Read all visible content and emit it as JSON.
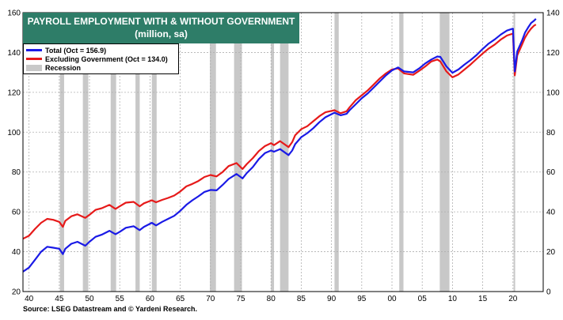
{
  "title": {
    "line1": "PAYROLL EMPLOYMENT WITH & WITHOUT GOVERNMENT",
    "line2": "(million, sa)"
  },
  "legend": {
    "total": "Total (Oct = 156.9)",
    "excluding": "Excluding Government (Oct = 134.0)",
    "recession": "Recession"
  },
  "source": "Source: LSEG Datastream and © Yardeni Research.",
  "colors": {
    "title_bg": "#2e7d68",
    "total": "#1a1ae6",
    "excluding": "#e61a1a",
    "recession": "#c8c8c8"
  },
  "chart_data": {
    "type": "line",
    "xlim": [
      1939,
      2025
    ],
    "x_tick_labels": [
      "40",
      "45",
      "50",
      "55",
      "60",
      "65",
      "70",
      "75",
      "80",
      "85",
      "90",
      "95",
      "00",
      "05",
      "10",
      "15",
      "20"
    ],
    "x_tick_years": [
      1940,
      1945,
      1950,
      1955,
      1960,
      1965,
      1970,
      1975,
      1980,
      1985,
      1990,
      1995,
      2000,
      2005,
      2010,
      2015,
      2020
    ],
    "left_axis": {
      "ylim": [
        20,
        160
      ],
      "ticks": [
        20,
        40,
        60,
        80,
        100,
        120,
        140,
        160
      ]
    },
    "right_axis": {
      "ylim": [
        0,
        140
      ],
      "ticks": [
        0,
        20,
        40,
        60,
        80,
        100,
        120,
        140
      ]
    },
    "grid": true,
    "legend_position": "top-left",
    "recessions": [
      [
        1945.1,
        1945.8
      ],
      [
        1948.9,
        1949.8
      ],
      [
        1953.5,
        1954.4
      ],
      [
        1957.6,
        1958.3
      ],
      [
        1960.3,
        1961.1
      ],
      [
        1969.9,
        1970.9
      ],
      [
        1973.9,
        1975.2
      ],
      [
        1980.0,
        1980.5
      ],
      [
        1981.5,
        1982.9
      ],
      [
        1990.5,
        1991.2
      ],
      [
        2001.2,
        2001.9
      ],
      [
        2007.9,
        2009.5
      ],
      [
        2020.1,
        2020.3
      ]
    ],
    "series": [
      {
        "name": "Total (Oct = 156.9)",
        "axis": "left",
        "points": [
          [
            1939.0,
            30.0
          ],
          [
            1940.0,
            32.0
          ],
          [
            1941.0,
            36.0
          ],
          [
            1942.0,
            40.0
          ],
          [
            1943.0,
            42.5
          ],
          [
            1944.0,
            42.0
          ],
          [
            1945.0,
            41.5
          ],
          [
            1945.6,
            38.8
          ],
          [
            1946.0,
            41.5
          ],
          [
            1947.0,
            44.0
          ],
          [
            1948.0,
            45.0
          ],
          [
            1949.3,
            43.0
          ],
          [
            1950.0,
            45.0
          ],
          [
            1951.0,
            47.5
          ],
          [
            1952.0,
            48.5
          ],
          [
            1953.3,
            50.5
          ],
          [
            1954.3,
            48.8
          ],
          [
            1955.0,
            50.0
          ],
          [
            1956.0,
            52.0
          ],
          [
            1957.3,
            52.8
          ],
          [
            1958.3,
            50.8
          ],
          [
            1959.0,
            52.5
          ],
          [
            1960.3,
            54.5
          ],
          [
            1961.0,
            53.2
          ],
          [
            1962.0,
            55.0
          ],
          [
            1963.0,
            56.5
          ],
          [
            1964.0,
            58.0
          ],
          [
            1965.0,
            60.5
          ],
          [
            1966.0,
            63.5
          ],
          [
            1967.0,
            65.8
          ],
          [
            1968.0,
            67.8
          ],
          [
            1969.0,
            70.0
          ],
          [
            1970.0,
            71.0
          ],
          [
            1971.0,
            70.8
          ],
          [
            1972.0,
            73.5
          ],
          [
            1973.0,
            76.5
          ],
          [
            1974.3,
            79.0
          ],
          [
            1975.3,
            76.8
          ],
          [
            1976.0,
            79.5
          ],
          [
            1977.0,
            82.5
          ],
          [
            1978.0,
            86.5
          ],
          [
            1979.0,
            89.5
          ],
          [
            1980.0,
            90.8
          ],
          [
            1980.5,
            90.2
          ],
          [
            1981.5,
            91.5
          ],
          [
            1982.9,
            88.5
          ],
          [
            1983.5,
            90.8
          ],
          [
            1984.0,
            94.0
          ],
          [
            1985.0,
            97.5
          ],
          [
            1986.0,
            99.5
          ],
          [
            1987.0,
            102.0
          ],
          [
            1988.0,
            105.0
          ],
          [
            1989.0,
            107.5
          ],
          [
            1990.5,
            109.8
          ],
          [
            1991.5,
            108.5
          ],
          [
            1992.5,
            109.2
          ],
          [
            1993.0,
            111.0
          ],
          [
            1994.0,
            114.0
          ],
          [
            1995.0,
            117.0
          ],
          [
            1996.0,
            119.5
          ],
          [
            1997.0,
            122.5
          ],
          [
            1998.0,
            125.5
          ],
          [
            1999.0,
            128.5
          ],
          [
            2000.0,
            131.0
          ],
          [
            2001.0,
            132.5
          ],
          [
            2002.0,
            130.5
          ],
          [
            2003.5,
            130.0
          ],
          [
            2004.5,
            132.0
          ],
          [
            2005.5,
            134.5
          ],
          [
            2006.5,
            136.5
          ],
          [
            2007.5,
            138.0
          ],
          [
            2008.0,
            137.8
          ],
          [
            2009.0,
            133.0
          ],
          [
            2010.0,
            129.8
          ],
          [
            2011.0,
            131.5
          ],
          [
            2012.0,
            134.0
          ],
          [
            2013.0,
            136.2
          ],
          [
            2014.0,
            138.8
          ],
          [
            2015.0,
            141.8
          ],
          [
            2016.0,
            144.5
          ],
          [
            2017.0,
            146.6
          ],
          [
            2018.0,
            149.0
          ],
          [
            2019.0,
            151.0
          ],
          [
            2020.0,
            152.0
          ],
          [
            2020.3,
            130.5
          ],
          [
            2020.7,
            140.5
          ],
          [
            2021.0,
            142.5
          ],
          [
            2021.5,
            146.0
          ],
          [
            2022.0,
            150.0
          ],
          [
            2022.5,
            152.5
          ],
          [
            2023.0,
            154.8
          ],
          [
            2023.5,
            156.0
          ],
          [
            2023.8,
            156.9
          ]
        ]
      },
      {
        "name": "Excluding Government (Oct = 134.0)",
        "axis": "right",
        "points": [
          [
            1939.0,
            26.5
          ],
          [
            1940.0,
            28.0
          ],
          [
            1941.0,
            31.5
          ],
          [
            1942.0,
            34.5
          ],
          [
            1943.0,
            36.5
          ],
          [
            1944.0,
            36.0
          ],
          [
            1945.0,
            35.0
          ],
          [
            1945.6,
            32.5
          ],
          [
            1946.0,
            35.5
          ],
          [
            1947.0,
            37.8
          ],
          [
            1948.0,
            38.8
          ],
          [
            1949.3,
            37.0
          ],
          [
            1950.0,
            38.5
          ],
          [
            1951.0,
            41.0
          ],
          [
            1952.0,
            41.8
          ],
          [
            1953.3,
            43.5
          ],
          [
            1954.3,
            41.5
          ],
          [
            1955.0,
            42.8
          ],
          [
            1956.0,
            44.6
          ],
          [
            1957.3,
            45.0
          ],
          [
            1958.3,
            42.8
          ],
          [
            1959.0,
            44.3
          ],
          [
            1960.3,
            45.8
          ],
          [
            1961.0,
            44.8
          ],
          [
            1962.0,
            46.0
          ],
          [
            1963.0,
            47.0
          ],
          [
            1964.0,
            48.2
          ],
          [
            1965.0,
            50.2
          ],
          [
            1966.0,
            52.8
          ],
          [
            1967.0,
            54.0
          ],
          [
            1968.0,
            55.5
          ],
          [
            1969.0,
            57.5
          ],
          [
            1970.0,
            58.5
          ],
          [
            1971.0,
            57.8
          ],
          [
            1972.0,
            60.0
          ],
          [
            1973.0,
            63.0
          ],
          [
            1974.3,
            64.5
          ],
          [
            1975.3,
            61.5
          ],
          [
            1976.0,
            64.0
          ],
          [
            1977.0,
            67.0
          ],
          [
            1978.0,
            70.5
          ],
          [
            1979.0,
            73.0
          ],
          [
            1980.0,
            74.5
          ],
          [
            1980.5,
            73.5
          ],
          [
            1981.5,
            75.5
          ],
          [
            1982.9,
            72.5
          ],
          [
            1983.5,
            75.0
          ],
          [
            1984.0,
            78.5
          ],
          [
            1985.0,
            81.5
          ],
          [
            1986.0,
            83.0
          ],
          [
            1987.0,
            85.5
          ],
          [
            1988.0,
            88.0
          ],
          [
            1989.0,
            90.0
          ],
          [
            1990.5,
            91.0
          ],
          [
            1991.5,
            89.5
          ],
          [
            1992.5,
            90.5
          ],
          [
            1993.0,
            92.5
          ],
          [
            1994.0,
            96.0
          ],
          [
            1995.0,
            98.5
          ],
          [
            1996.0,
            101.0
          ],
          [
            1997.0,
            104.0
          ],
          [
            1998.0,
            107.0
          ],
          [
            1999.0,
            109.5
          ],
          [
            2000.0,
            111.5
          ],
          [
            2001.0,
            112.0
          ],
          [
            2002.0,
            109.5
          ],
          [
            2003.5,
            108.8
          ],
          [
            2004.5,
            110.8
          ],
          [
            2005.5,
            113.0
          ],
          [
            2006.5,
            115.5
          ],
          [
            2007.5,
            116.5
          ],
          [
            2008.0,
            115.5
          ],
          [
            2009.0,
            110.5
          ],
          [
            2010.0,
            107.5
          ],
          [
            2011.0,
            109.0
          ],
          [
            2012.0,
            111.5
          ],
          [
            2013.0,
            114.0
          ],
          [
            2014.0,
            116.8
          ],
          [
            2015.0,
            119.5
          ],
          [
            2016.0,
            122.0
          ],
          [
            2017.0,
            124.0
          ],
          [
            2018.0,
            126.5
          ],
          [
            2019.0,
            128.5
          ],
          [
            2020.0,
            129.5
          ],
          [
            2020.3,
            108.5
          ],
          [
            2020.7,
            118.5
          ],
          [
            2021.0,
            120.5
          ],
          [
            2021.5,
            124.0
          ],
          [
            2022.0,
            127.5
          ],
          [
            2022.5,
            130.0
          ],
          [
            2023.0,
            132.0
          ],
          [
            2023.5,
            133.5
          ],
          [
            2023.8,
            134.0
          ]
        ]
      }
    ]
  }
}
